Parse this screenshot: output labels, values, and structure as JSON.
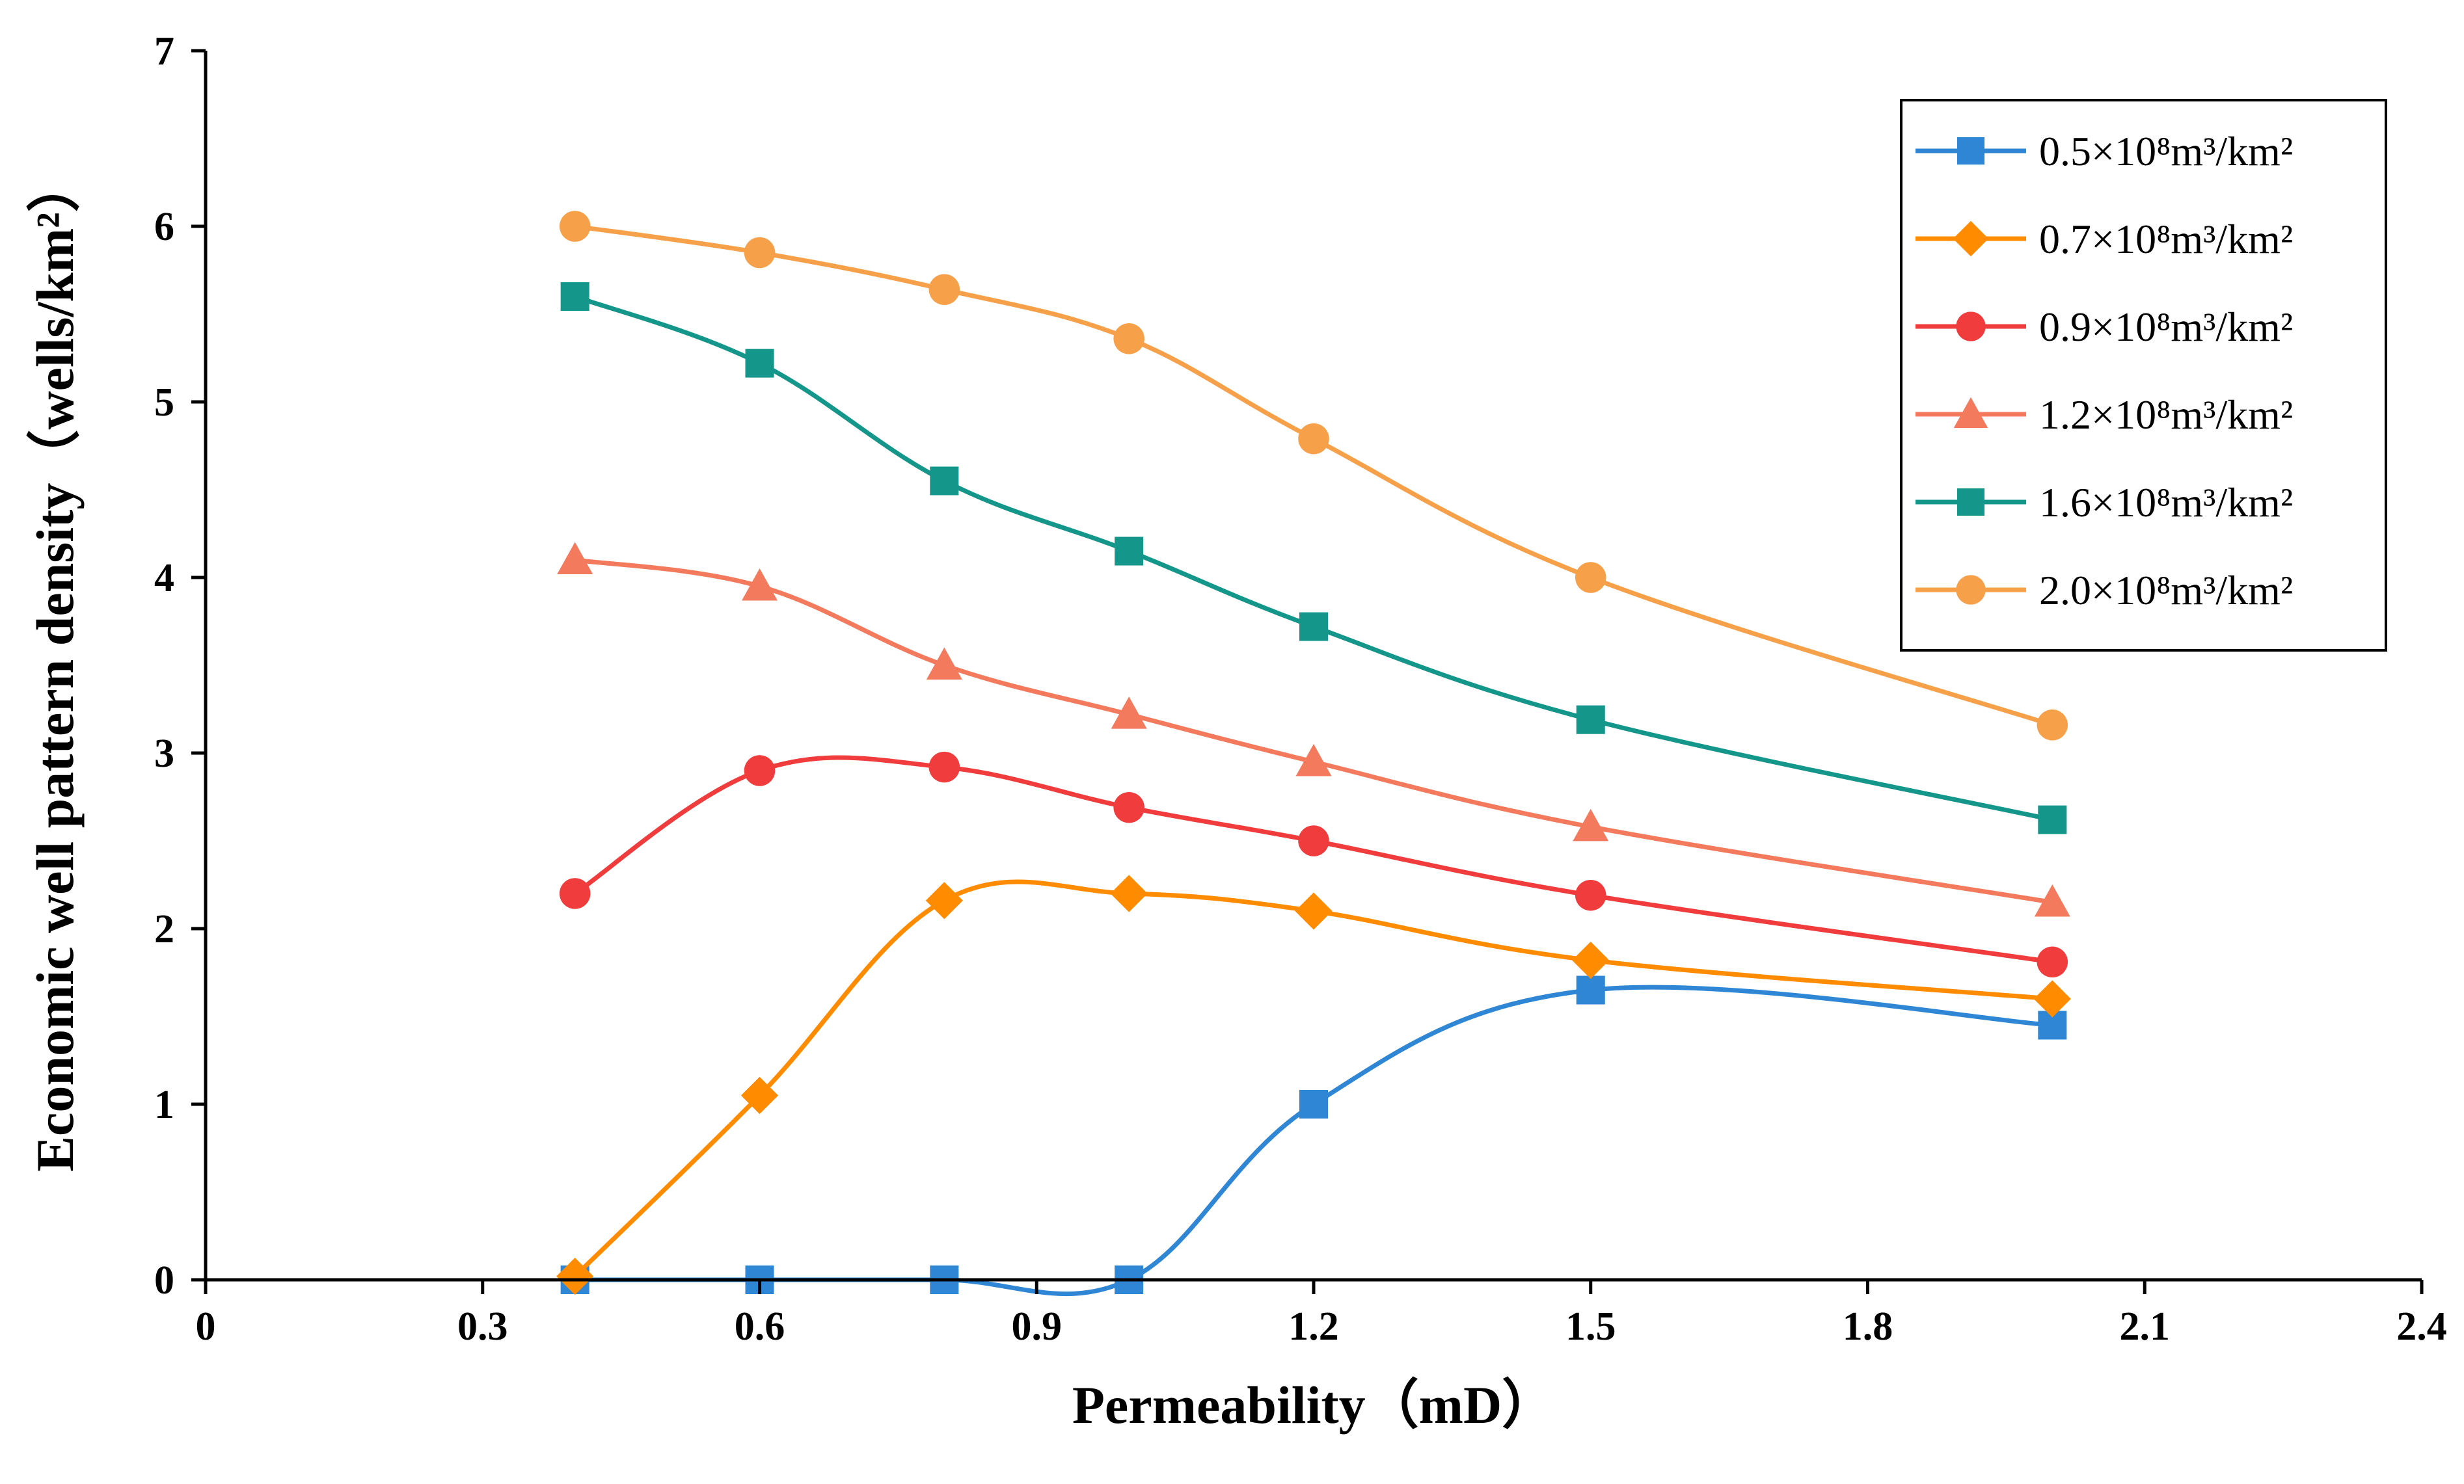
{
  "chart_data": {
    "type": "line",
    "xlabel": "Permeability（mD）",
    "ylabel": "Economic well pattern density（wells/km²）",
    "xlim": [
      0,
      2.4
    ],
    "ylim": [
      0,
      7
    ],
    "xticks": [
      "0",
      "0.3",
      "0.6",
      "0.9",
      "1.2",
      "1.5",
      "1.8",
      "2.1",
      "2.4"
    ],
    "yticks": [
      "0",
      "1",
      "2",
      "3",
      "4",
      "5",
      "6",
      "7"
    ],
    "grid": false,
    "legend_position": "top-right",
    "x": [
      0.4,
      0.6,
      0.8,
      1.0,
      1.2,
      1.5,
      2.0
    ],
    "series": [
      {
        "name": "0.5×10⁸m³/km²",
        "color": "#2e86d4",
        "marker": "square",
        "values": [
          0,
          0,
          0,
          0,
          1.0,
          1.65,
          1.45
        ]
      },
      {
        "name": "0.7×10⁸m³/km²",
        "color": "#ff8c00",
        "marker": "diamond",
        "values": [
          0.02,
          1.05,
          2.16,
          2.2,
          2.1,
          1.82,
          1.6
        ]
      },
      {
        "name": "0.9×10⁸m³/km²",
        "color": "#f03c3c",
        "marker": "circle",
        "values": [
          2.2,
          2.9,
          2.92,
          2.69,
          2.5,
          2.19,
          1.81
        ]
      },
      {
        "name": "1.2×10⁸m³/km²",
        "color": "#f47a5e",
        "marker": "triangle",
        "values": [
          4.1,
          3.95,
          3.5,
          3.22,
          2.95,
          2.58,
          2.15
        ]
      },
      {
        "name": "1.6×10⁸m³/km²",
        "color": "#14968a",
        "marker": "square",
        "values": [
          5.6,
          5.22,
          4.55,
          4.15,
          3.72,
          3.19,
          2.62
        ]
      },
      {
        "name": "2.0×10⁸m³/km²",
        "color": "#f7a04a",
        "marker": "circle",
        "values": [
          6.0,
          5.85,
          5.64,
          5.36,
          4.79,
          4.0,
          3.16
        ]
      }
    ]
  }
}
